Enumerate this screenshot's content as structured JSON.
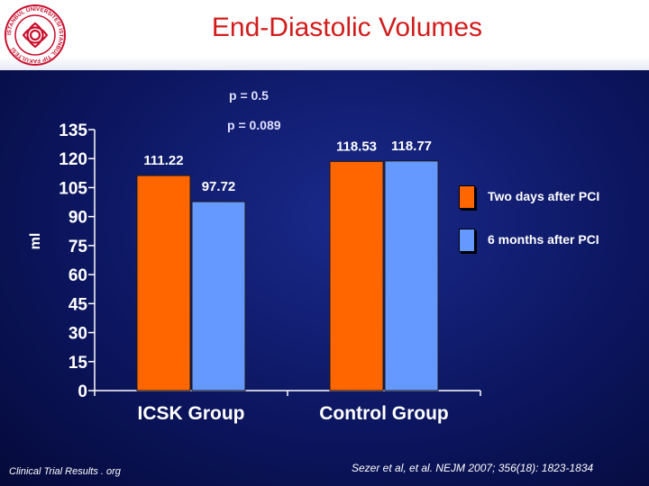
{
  "header": {
    "title": "End-Diastolic Volumes"
  },
  "logo": {
    "ring_text": "İSTANBUL ÜNİVERSİTESİ İSTANBUL TIP FAKÜLTESİ"
  },
  "annotations": {
    "p_group1": "p = 0.5",
    "p_group2": "p = 0.089"
  },
  "legend": [
    {
      "label": "Two days after PCI",
      "color": "#ff6600"
    },
    {
      "label": "6 months after PCI",
      "color": "#6699ff"
    }
  ],
  "footer": {
    "left": "Clinical Trial Results . org",
    "right": "Sezer et al, et al. NEJM 2007; 356(18): 1823-1834"
  },
  "chart_data": {
    "type": "bar",
    "title": "End-Diastolic Volumes",
    "xlabel": "",
    "ylabel": "ml",
    "ylim": [
      0,
      135
    ],
    "yticks": [
      0,
      15,
      30,
      45,
      60,
      75,
      90,
      105,
      120,
      135
    ],
    "categories": [
      "ICSK Group",
      "Control Group"
    ],
    "series": [
      {
        "name": "Two days after PCI",
        "color": "#ff6600",
        "values": [
          111.22,
          118.53
        ],
        "labels": [
          "111.22",
          "118.53"
        ]
      },
      {
        "name": "6 months after PCI",
        "color": "#6699ff",
        "values": [
          97.72,
          118.77
        ],
        "labels": [
          "97.72",
          "118.77"
        ]
      }
    ]
  }
}
